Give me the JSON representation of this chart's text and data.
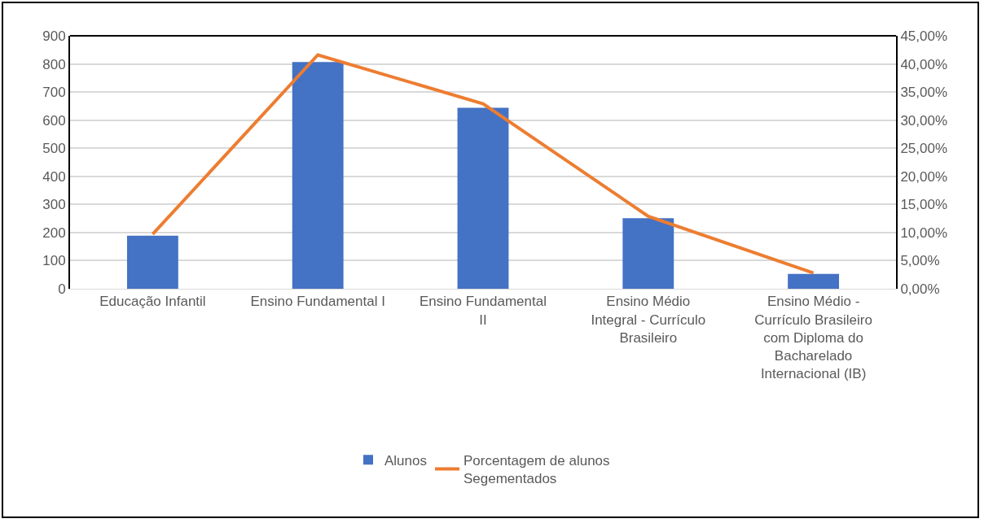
{
  "chart_data": {
    "type": "bar",
    "categories": [
      "Educação Infantil",
      "Ensino Fundamental I",
      "Ensino Fundamental II",
      "Ensino Médio Integral - Currículo Brasileiro",
      "Ensino Médio - Currículo Brasileiro com Diploma do Bacharelado Internacional (IB)"
    ],
    "series": [
      {
        "name": "Alunos",
        "color": "#4472c4",
        "values": [
          189,
          807,
          644,
          251,
          53
        ]
      },
      {
        "name": "Porcentagem de alunos Segementados",
        "type": "line",
        "axis": "y2",
        "color": "#ed7d31",
        "values": [
          9.7,
          41.6,
          32.9,
          12.9,
          2.8
        ]
      }
    ],
    "ylim": [
      0,
      900
    ],
    "yticks": [
      0,
      100,
      200,
      300,
      400,
      500,
      600,
      700,
      800,
      900
    ],
    "y2lim": [
      0,
      45
    ],
    "y2ticks": [
      {
        "value": 0,
        "label": "0,00%"
      },
      {
        "value": 5,
        "label": "5,00%"
      },
      {
        "value": 10,
        "label": "10,00%"
      },
      {
        "value": 15,
        "label": "15,00%"
      },
      {
        "value": 20,
        "label": "20,00%"
      },
      {
        "value": 25,
        "label": "25,00%"
      },
      {
        "value": 30,
        "label": "30,00%"
      },
      {
        "value": 35,
        "label": "35,00%"
      },
      {
        "value": 40,
        "label": "40,00%"
      },
      {
        "value": 45,
        "label": "45,00%"
      }
    ],
    "grid": "y",
    "legend": "bottom",
    "marker": "none",
    "line_style": "solid"
  }
}
